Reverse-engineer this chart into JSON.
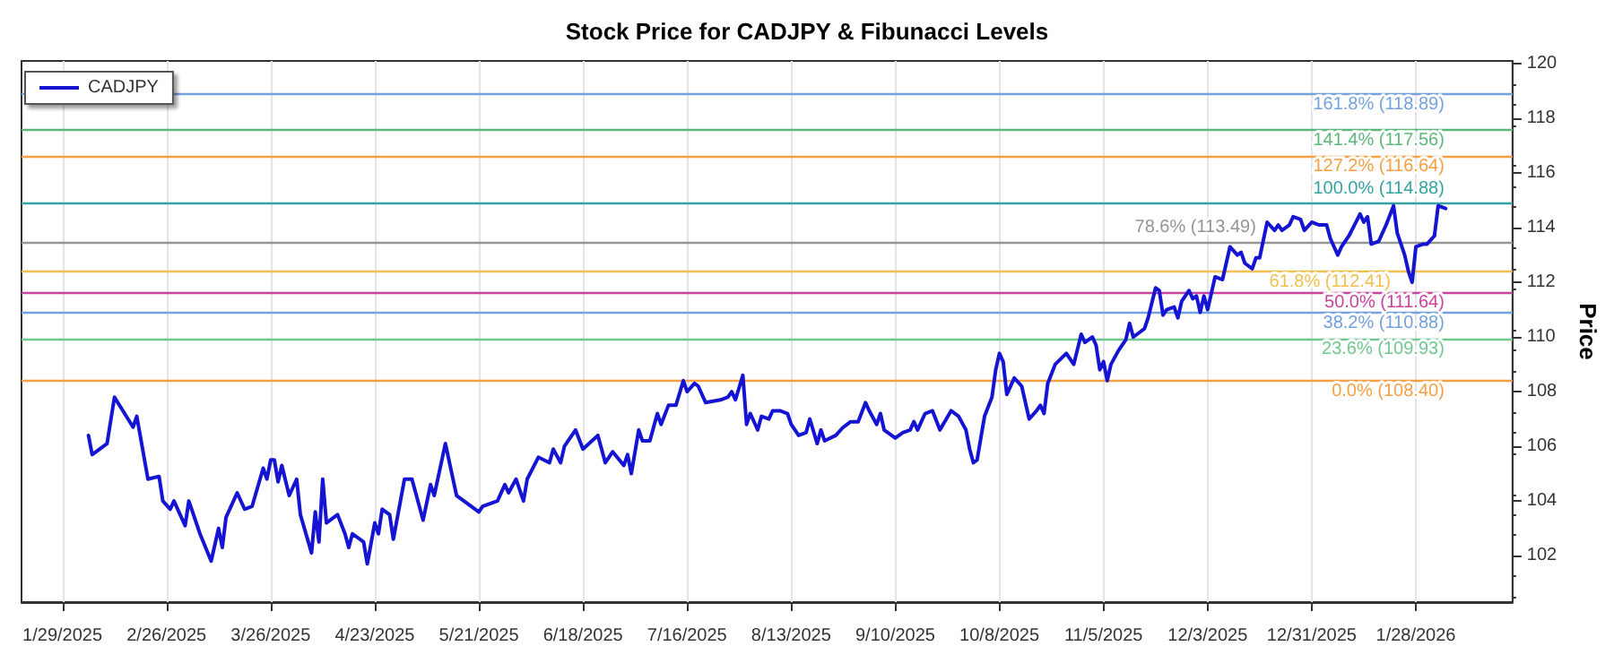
{
  "chart_data": {
    "type": "line",
    "title": "Stock Price for CADJPY & Fibunacci Levels",
    "ylabel": "Price",
    "x": [
      "2025-02-05",
      "2025-02-06",
      "2025-02-10",
      "2025-02-12",
      "2025-02-17",
      "2025-02-18",
      "2025-02-21",
      "2025-02-24",
      "2025-02-25",
      "2025-02-27",
      "2025-02-28",
      "2025-03-03",
      "2025-03-04",
      "2025-03-07",
      "2025-03-10",
      "2025-03-12",
      "2025-03-13",
      "2025-03-14",
      "2025-03-17",
      "2025-03-19",
      "2025-03-21",
      "2025-03-24",
      "2025-03-25",
      "2025-03-26",
      "2025-03-27",
      "2025-03-28",
      "2025-03-29",
      "2025-03-31",
      "2025-04-02",
      "2025-04-03",
      "2025-04-06",
      "2025-04-07",
      "2025-04-08",
      "2025-04-09",
      "2025-04-10",
      "2025-04-13",
      "2025-04-15",
      "2025-04-16",
      "2025-04-17",
      "2025-04-20",
      "2025-04-21",
      "2025-04-23",
      "2025-04-24",
      "2025-04-25",
      "2025-04-27",
      "2025-04-28",
      "2025-05-01",
      "2025-05-03",
      "2025-05-06",
      "2025-05-08",
      "2025-05-09",
      "2025-05-12",
      "2025-05-15",
      "2025-05-21",
      "2025-05-22",
      "2025-05-26",
      "2025-05-28",
      "2025-05-29",
      "2025-05-31",
      "2025-06-02",
      "2025-06-03",
      "2025-06-06",
      "2025-06-09",
      "2025-06-10",
      "2025-06-12",
      "2025-06-13",
      "2025-06-16",
      "2025-06-18",
      "2025-06-22",
      "2025-06-24",
      "2025-06-26",
      "2025-06-29",
      "2025-06-30",
      "2025-07-01",
      "2025-07-03",
      "2025-07-04",
      "2025-07-06",
      "2025-07-08",
      "2025-07-09",
      "2025-07-11",
      "2025-07-13",
      "2025-07-15",
      "2025-07-16",
      "2025-07-18",
      "2025-07-19",
      "2025-07-21",
      "2025-07-25",
      "2025-07-27",
      "2025-07-28",
      "2025-07-29",
      "2025-07-31",
      "2025-08-01",
      "2025-08-02",
      "2025-08-04",
      "2025-08-05",
      "2025-08-07",
      "2025-08-08",
      "2025-08-10",
      "2025-08-12",
      "2025-08-13",
      "2025-08-15",
      "2025-08-17",
      "2025-08-18",
      "2025-08-20",
      "2025-08-21",
      "2025-08-22",
      "2025-08-25",
      "2025-08-27",
      "2025-08-29",
      "2025-08-31",
      "2025-09-02",
      "2025-09-03",
      "2025-09-05",
      "2025-09-06",
      "2025-09-07",
      "2025-09-10",
      "2025-09-12",
      "2025-09-14",
      "2025-09-15",
      "2025-09-16",
      "2025-09-18",
      "2025-09-20",
      "2025-09-22",
      "2025-09-25",
      "2025-09-27",
      "2025-09-29",
      "2025-09-30",
      "2025-10-01",
      "2025-10-02",
      "2025-10-04",
      "2025-10-06",
      "2025-10-07",
      "2025-10-08",
      "2025-10-09",
      "2025-10-10",
      "2025-10-12",
      "2025-10-14",
      "2025-10-16",
      "2025-10-18",
      "2025-10-19",
      "2025-10-20",
      "2025-10-21",
      "2025-10-23",
      "2025-10-26",
      "2025-10-28",
      "2025-10-30",
      "2025-10-31",
      "2025-11-02",
      "2025-11-03",
      "2025-11-04",
      "2025-11-05",
      "2025-11-06",
      "2025-11-07",
      "2025-11-09",
      "2025-11-11",
      "2025-11-12",
      "2025-11-13",
      "2025-11-16",
      "2025-11-17",
      "2025-11-19",
      "2025-11-20",
      "2025-11-21",
      "2025-11-22",
      "2025-11-24",
      "2025-11-25",
      "2025-11-26",
      "2025-11-28",
      "2025-11-29",
      "2025-11-30",
      "2025-12-01",
      "2025-12-02",
      "2025-12-03",
      "2025-12-05",
      "2025-12-07",
      "2025-12-09",
      "2025-12-11",
      "2025-12-12",
      "2025-12-13",
      "2025-12-15",
      "2025-12-16",
      "2025-12-17",
      "2025-12-19",
      "2025-12-21",
      "2025-12-22",
      "2025-12-23",
      "2025-12-25",
      "2025-12-26",
      "2025-12-28",
      "2025-12-29",
      "2025-12-31",
      "2026-01-02",
      "2026-01-04",
      "2026-01-05",
      "2026-01-07",
      "2026-01-08",
      "2026-01-10",
      "2026-01-13",
      "2026-01-14",
      "2026-01-15",
      "2026-01-16",
      "2026-01-18",
      "2026-01-20",
      "2026-01-22",
      "2026-01-23",
      "2026-01-25",
      "2026-01-26",
      "2026-01-27",
      "2026-01-28",
      "2026-01-30",
      "2026-01-31",
      "2026-02-02",
      "2026-02-03",
      "2026-02-05"
    ],
    "series": [
      {
        "name": "CADJPY",
        "color": "#1414d2",
        "values": [
          106.4,
          105.7,
          106.1,
          107.8,
          106.7,
          107.1,
          104.8,
          104.9,
          104.0,
          103.7,
          104.0,
          103.1,
          104.0,
          102.8,
          101.8,
          103.0,
          102.3,
          103.4,
          104.3,
          103.7,
          103.8,
          105.2,
          104.8,
          105.5,
          105.5,
          104.7,
          105.3,
          104.2,
          104.8,
          103.5,
          102.1,
          103.6,
          102.5,
          104.8,
          103.2,
          103.5,
          102.8,
          102.3,
          102.8,
          102.5,
          101.7,
          103.2,
          102.8,
          103.7,
          103.5,
          102.6,
          104.8,
          104.8,
          103.3,
          104.6,
          104.2,
          106.1,
          104.2,
          103.6,
          103.8,
          104.0,
          104.6,
          104.3,
          104.8,
          104.0,
          104.8,
          105.6,
          105.4,
          105.9,
          105.4,
          106.0,
          106.6,
          105.9,
          106.4,
          105.4,
          105.8,
          105.3,
          105.7,
          105.0,
          106.6,
          106.2,
          106.2,
          107.2,
          106.8,
          107.5,
          107.5,
          108.4,
          108.0,
          108.3,
          108.2,
          107.6,
          107.7,
          107.8,
          108.0,
          107.7,
          108.6,
          106.8,
          107.2,
          106.6,
          107.1,
          107.0,
          107.3,
          107.3,
          107.2,
          106.8,
          106.4,
          106.5,
          107.0,
          106.1,
          106.6,
          106.2,
          106.4,
          106.7,
          106.9,
          106.9,
          107.6,
          107.3,
          106.8,
          107.2,
          106.6,
          106.3,
          106.5,
          106.6,
          106.9,
          106.6,
          107.2,
          107.3,
          106.6,
          107.3,
          107.1,
          106.6,
          105.9,
          105.4,
          105.5,
          107.1,
          107.8,
          108.8,
          109.4,
          109.1,
          107.9,
          108.5,
          108.2,
          107.0,
          107.3,
          107.5,
          107.2,
          108.3,
          109.0,
          109.4,
          109.0,
          110.1,
          109.8,
          110.0,
          109.7,
          108.8,
          109.1,
          108.4,
          109.0,
          109.5,
          109.9,
          110.5,
          110.0,
          110.3,
          110.7,
          111.8,
          111.7,
          110.8,
          111.0,
          111.1,
          110.7,
          111.3,
          111.7,
          111.4,
          111.5,
          110.9,
          111.5,
          111.0,
          112.2,
          112.1,
          113.3,
          113.0,
          113.1,
          112.7,
          112.5,
          112.9,
          112.9,
          114.2,
          113.9,
          114.1,
          113.9,
          114.1,
          114.4,
          114.3,
          113.9,
          114.2,
          114.1,
          114.1,
          113.6,
          113.0,
          113.3,
          113.7,
          114.5,
          114.2,
          114.4,
          113.4,
          113.5,
          114.1,
          114.8,
          113.8,
          113.0,
          112.4,
          112.0,
          113.3,
          113.4,
          113.4,
          113.7,
          114.8,
          114.7
        ]
      }
    ],
    "xlim": [
      "2025-01-18",
      "2026-02-23"
    ],
    "xticks": [
      {
        "value": "2025-01-29",
        "label": "1/29/2025"
      },
      {
        "value": "2025-02-26",
        "label": "2/26/2025"
      },
      {
        "value": "2025-03-26",
        "label": "3/26/2025"
      },
      {
        "value": "2025-04-23",
        "label": "4/23/2025"
      },
      {
        "value": "2025-05-21",
        "label": "5/21/2025"
      },
      {
        "value": "2025-06-18",
        "label": "6/18/2025"
      },
      {
        "value": "2025-07-16",
        "label": "7/16/2025"
      },
      {
        "value": "2025-08-13",
        "label": "8/13/2025"
      },
      {
        "value": "2025-09-10",
        "label": "9/10/2025"
      },
      {
        "value": "2025-10-08",
        "label": "10/8/2025"
      },
      {
        "value": "2025-11-05",
        "label": "11/5/2025"
      },
      {
        "value": "2025-12-03",
        "label": "12/3/2025"
      },
      {
        "value": "2025-12-31",
        "label": "12/31/2025"
      },
      {
        "value": "2026-01-28",
        "label": "1/28/2026"
      }
    ],
    "ylim": [
      100.3,
      120.1
    ],
    "yticks": [
      102,
      104,
      106,
      108,
      110,
      112,
      114,
      116,
      118,
      120
    ],
    "ref_lines": [
      {
        "axis": "y",
        "value": 118.89,
        "label": "161.8% (118.89)",
        "color": "#74a2de"
      },
      {
        "axis": "y",
        "value": 117.56,
        "label": "141.4% (117.56)",
        "color": "#5cb87a"
      },
      {
        "axis": "y",
        "value": 116.64,
        "label": "127.2% (116.64)",
        "color": "#f5a045"
      },
      {
        "axis": "y",
        "value": 114.88,
        "label": "100.0% (114.88)",
        "color": "#36a3a3"
      },
      {
        "axis": "y",
        "value": 113.49,
        "label": "78.6% (113.49)",
        "color": "#959595"
      },
      {
        "axis": "y",
        "value": 112.41,
        "label": "61.8% (112.41)",
        "color": "#f0c050"
      },
      {
        "axis": "y",
        "value": 111.64,
        "label": "50.0% (111.64)",
        "color": "#c8449e"
      },
      {
        "axis": "y",
        "value": 110.88,
        "label": "38.2% (110.88)",
        "color": "#74a2de"
      },
      {
        "axis": "y",
        "value": 109.93,
        "label": "23.6% (109.93)",
        "color": "#70c890"
      },
      {
        "axis": "y",
        "value": 108.4,
        "label": "0.0% (108.40)",
        "color": "#f5a045"
      }
    ],
    "grid": "x",
    "legend": "top left",
    "marker": "none",
    "line_style": "solid"
  }
}
